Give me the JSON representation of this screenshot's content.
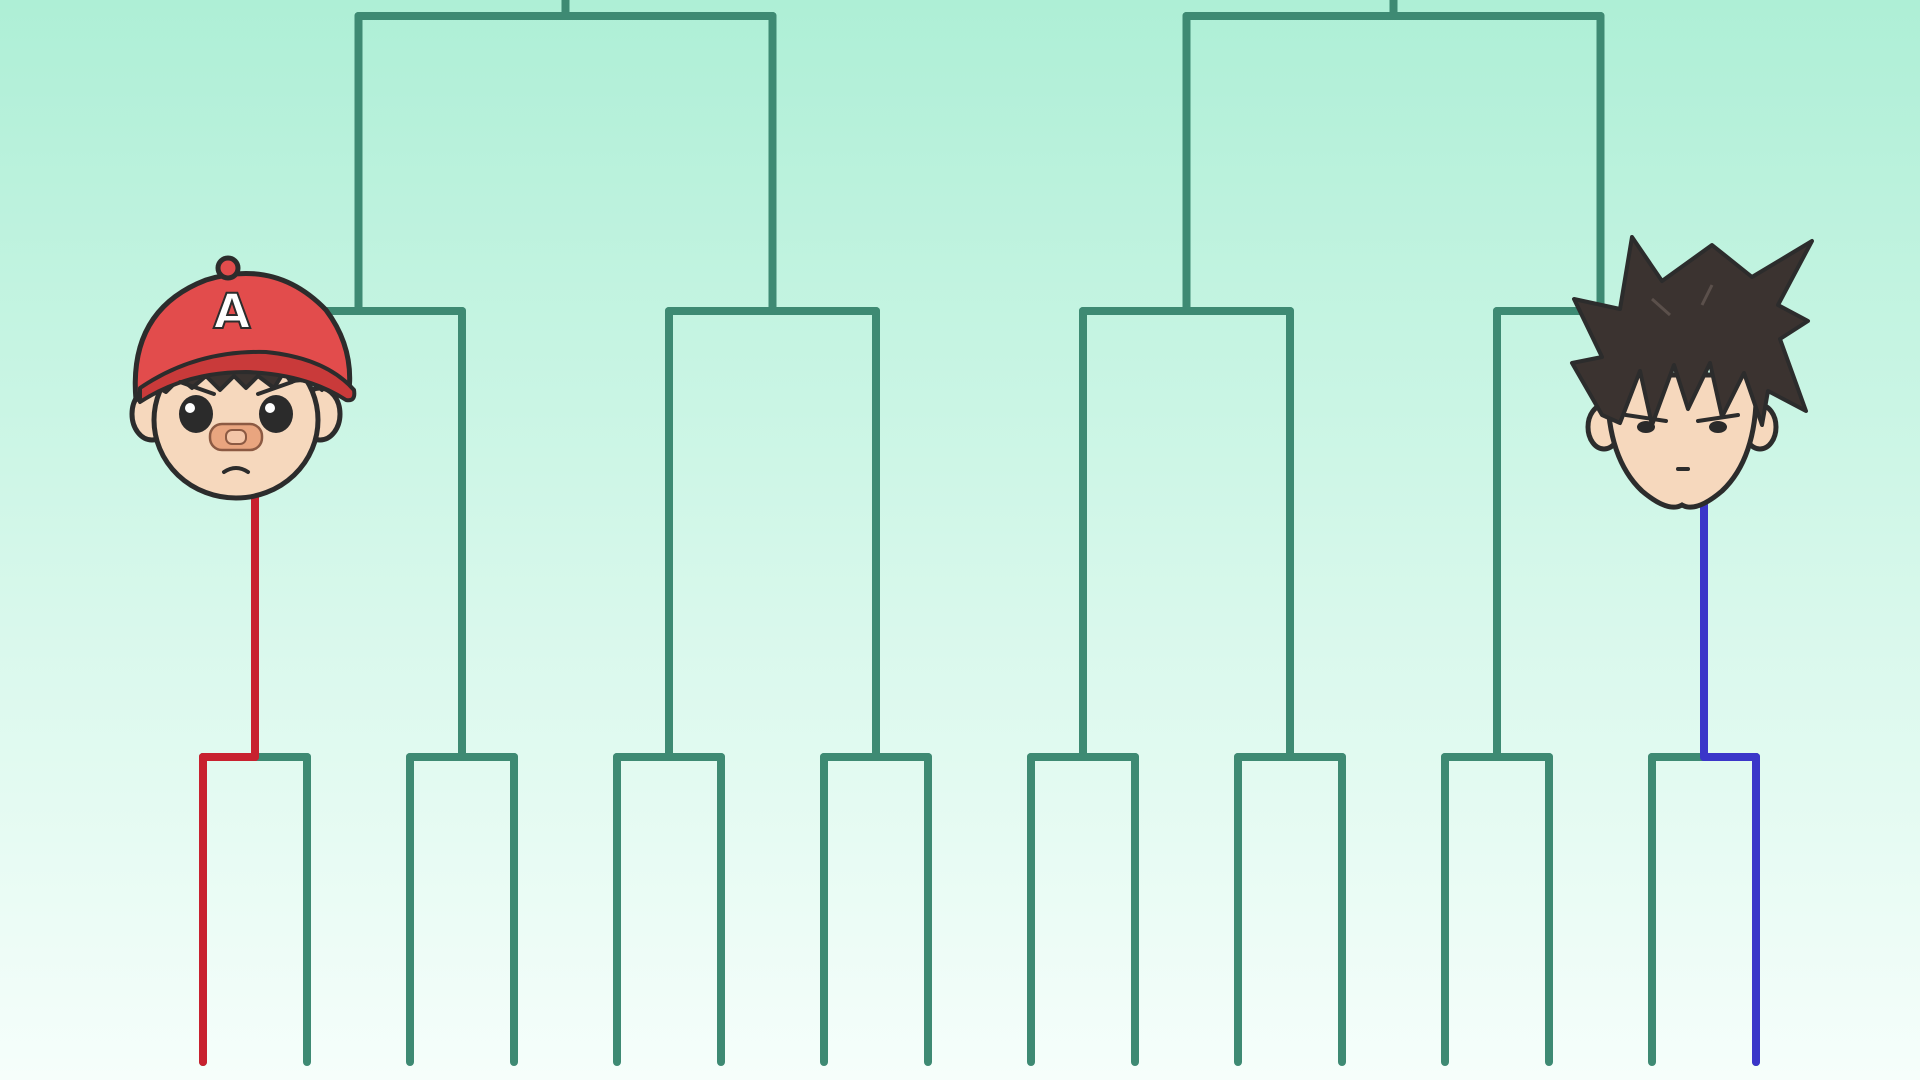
{
  "colors": {
    "bracket": "#3e8a73",
    "player_left_path": "#c8212f",
    "player_right_path": "#3b36c9",
    "outline": "#2c2c2c",
    "skin": "#f6d8bd",
    "cap": "#e24c4c",
    "hair": "#3b3330"
  },
  "players": [
    {
      "name": "cap-kid",
      "cap_letter": "A",
      "bracket_slot": 1,
      "path_color": "player_left_path"
    },
    {
      "name": "spiky-hair-kid",
      "bracket_slot": 16,
      "path_color": "player_right_path"
    }
  ],
  "bracket": {
    "entrants": 16,
    "rounds_visible": 3
  }
}
